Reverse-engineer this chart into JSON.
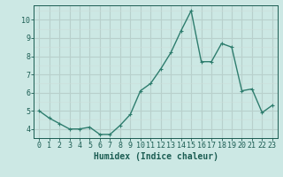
{
  "x": [
    0,
    1,
    2,
    3,
    4,
    5,
    6,
    7,
    8,
    9,
    10,
    11,
    12,
    13,
    14,
    15,
    16,
    17,
    18,
    19,
    20,
    21,
    22,
    23
  ],
  "y": [
    5.0,
    4.6,
    4.3,
    4.0,
    4.0,
    4.1,
    3.7,
    3.7,
    4.2,
    4.8,
    6.1,
    6.5,
    7.3,
    8.2,
    9.4,
    10.5,
    7.7,
    7.7,
    8.7,
    8.5,
    6.1,
    6.2,
    4.9,
    5.3
  ],
  "line_color": "#2e7d6e",
  "marker": "+",
  "marker_size": 3,
  "marker_linewidth": 0.8,
  "line_width": 1.0,
  "bg_color": "#cce8e4",
  "grid_major_color": "#b8d0cc",
  "grid_minor_color": "#ccdeda",
  "xlabel": "Humidex (Indice chaleur)",
  "xlabel_fontsize": 7,
  "tick_color": "#1a5c52",
  "tick_fontsize": 6,
  "ylim": [
    3.5,
    10.8
  ],
  "xlim": [
    -0.5,
    23.5
  ],
  "yticks": [
    4,
    5,
    6,
    7,
    8,
    9,
    10
  ],
  "xticks": [
    0,
    1,
    2,
    3,
    4,
    5,
    6,
    7,
    8,
    9,
    10,
    11,
    12,
    13,
    14,
    15,
    16,
    17,
    18,
    19,
    20,
    21,
    22,
    23
  ]
}
